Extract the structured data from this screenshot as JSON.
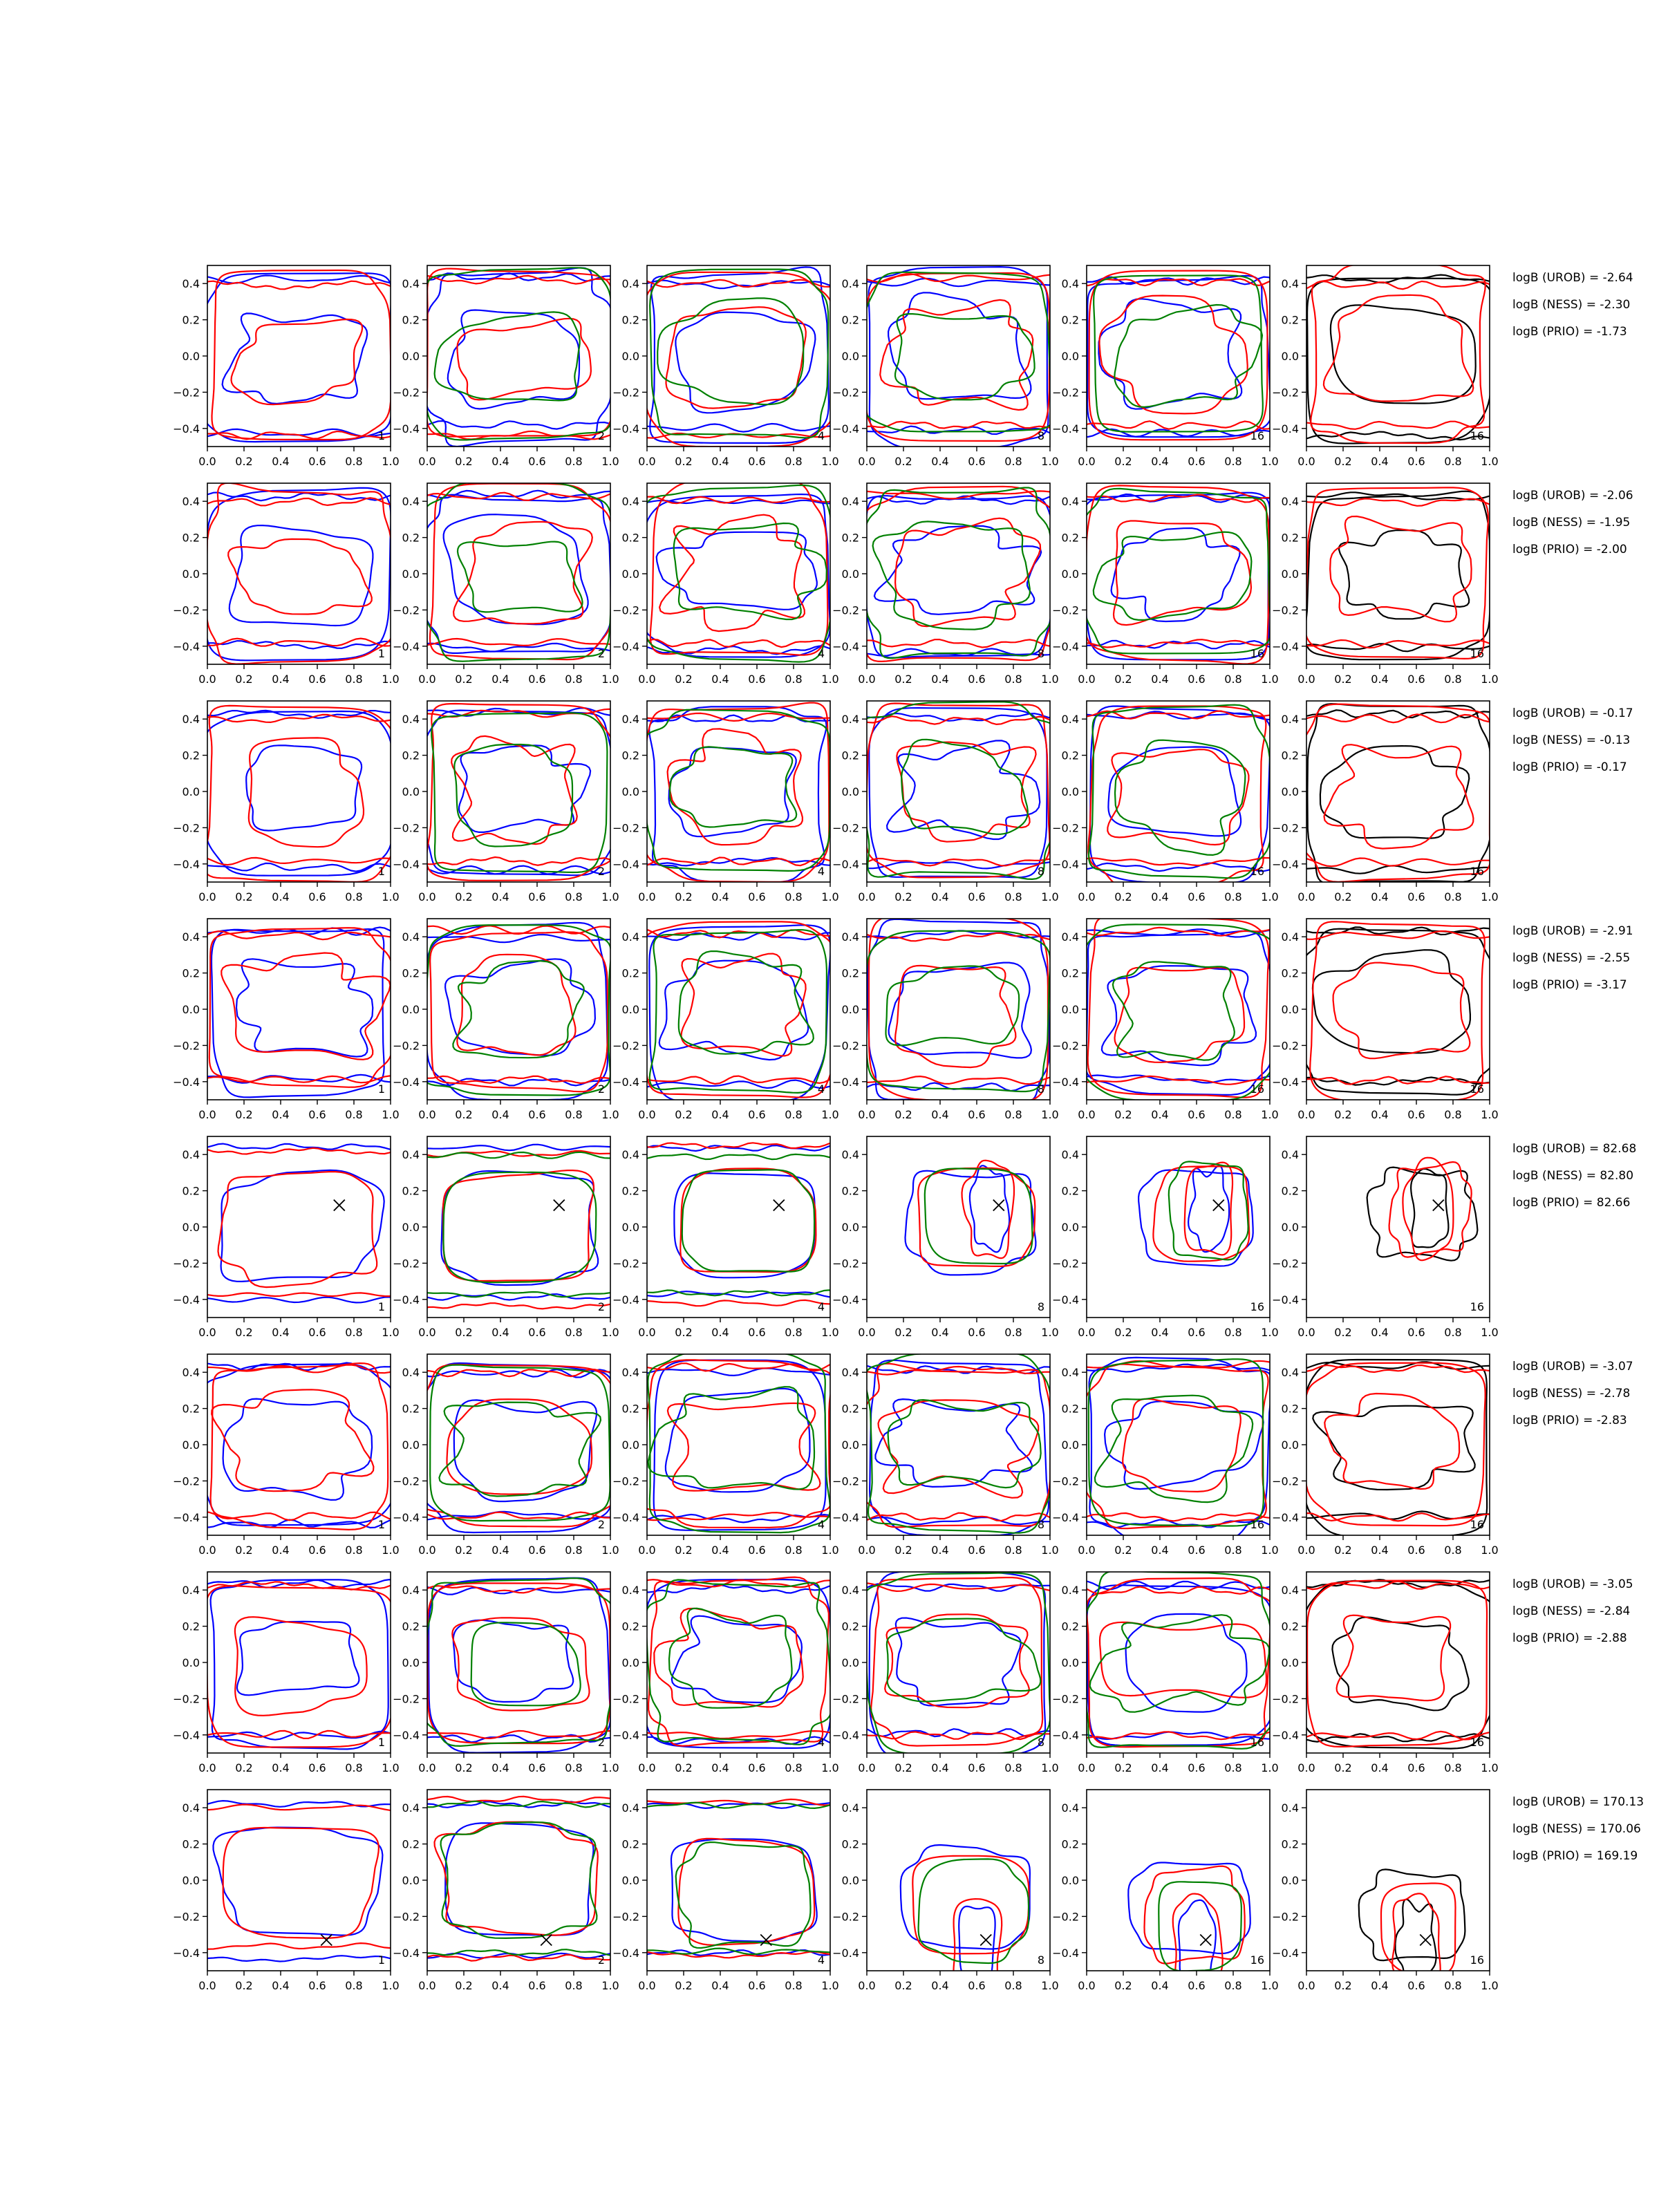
{
  "chart_data": {
    "type": "contour_grid",
    "panel_axes": {
      "xlim": [
        0.0,
        1.0
      ],
      "ylim": [
        -0.5,
        0.5
      ],
      "xticks": [
        "0.0",
        "0.2",
        "0.4",
        "0.6",
        "0.8",
        "1.0"
      ],
      "yticks": [
        "0.4",
        "0.2",
        "0.0",
        "−0.2",
        "−0.4"
      ]
    },
    "column_labels": [
      "1",
      "2",
      "4",
      "8",
      "16",
      "16"
    ],
    "colors": {
      "blue": "#0000ff",
      "red": "#ff0000",
      "green": "#008000",
      "black": "#000000"
    },
    "rows": [
      {
        "stats": [
          "logB (UROB) = -2.64",
          "logB (NESS) = -2.30",
          "logB (PRIO) = -1.73"
        ],
        "marker": null
      },
      {
        "stats": [
          "logB (UROB) = -2.06",
          "logB (NESS) = -1.95",
          "logB (PRIO) = -2.00"
        ],
        "marker": null
      },
      {
        "stats": [
          "logB (UROB) = -0.17",
          "logB (NESS) = -0.13",
          "logB (PRIO) = -0.17"
        ],
        "marker": null
      },
      {
        "stats": [
          "logB (UROB) = -2.91",
          "logB (NESS) = -2.55",
          "logB (PRIO) = -3.17"
        ],
        "marker": null
      },
      {
        "stats": [
          "logB (UROB) = 82.68",
          "logB (NESS) = 82.80",
          "logB (PRIO) = 82.66"
        ],
        "marker": {
          "x": 0.72,
          "y": 0.12
        },
        "mode": "central"
      },
      {
        "stats": [
          "logB (UROB) = -3.07",
          "logB (NESS) = -2.78",
          "logB (PRIO) = -2.83"
        ],
        "marker": null
      },
      {
        "stats": [
          "logB (UROB) = -3.05",
          "logB (NESS) = -2.84",
          "logB (PRIO) = -2.88"
        ],
        "marker": null
      },
      {
        "stats": [
          "logB (UROB) = 170.13",
          "logB (NESS) = 170.06",
          "logB (PRIO) = 169.19"
        ],
        "marker": {
          "x": 0.65,
          "y": -0.33
        },
        "mode": "central"
      }
    ]
  }
}
